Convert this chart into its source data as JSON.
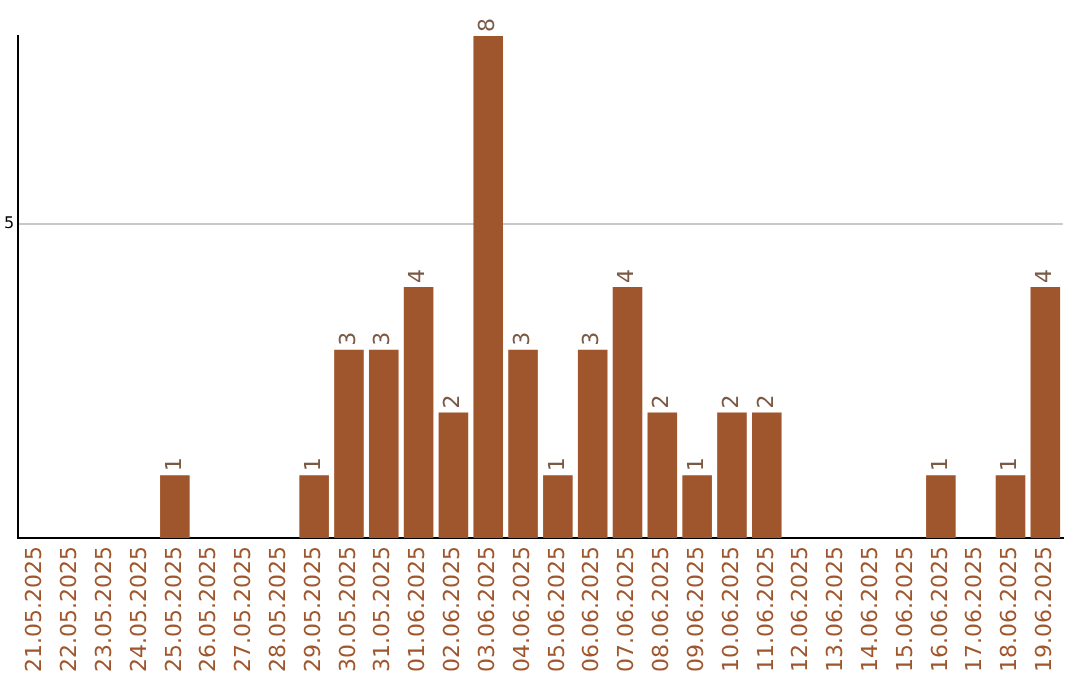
{
  "chart_data": {
    "type": "bar",
    "categories": [
      "21.05.2025",
      "22.05.2025",
      "23.05.2025",
      "24.05.2025",
      "25.05.2025",
      "26.05.2025",
      "27.05.2025",
      "28.05.2025",
      "29.05.2025",
      "30.05.2025",
      "31.05.2025",
      "01.06.2025",
      "02.06.2025",
      "03.06.2025",
      "04.06.2025",
      "05.06.2025",
      "06.06.2025",
      "07.06.2025",
      "08.06.2025",
      "09.06.2025",
      "10.06.2025",
      "11.06.2025",
      "12.06.2025",
      "13.06.2025",
      "14.06.2025",
      "15.06.2025",
      "16.06.2025",
      "17.06.2025",
      "18.06.2025",
      "19.06.2025"
    ],
    "values": [
      0,
      0,
      0,
      0,
      1,
      0,
      0,
      0,
      1,
      3,
      3,
      4,
      2,
      8,
      3,
      1,
      3,
      4,
      2,
      1,
      2,
      2,
      0,
      0,
      0,
      0,
      1,
      0,
      1,
      4
    ],
    "value_labels": [
      null,
      null,
      null,
      null,
      "1",
      null,
      null,
      null,
      "1",
      "3",
      "3",
      "4",
      "2",
      "8",
      "3",
      "1",
      "3",
      "4",
      "2",
      "1",
      "2",
      "2",
      null,
      null,
      null,
      null,
      "1",
      null,
      "1",
      "4"
    ],
    "color": "#a0562c",
    "ylim": [
      0,
      8
    ],
    "yticks": [
      5
    ],
    "grid": "y",
    "legend": false
  }
}
